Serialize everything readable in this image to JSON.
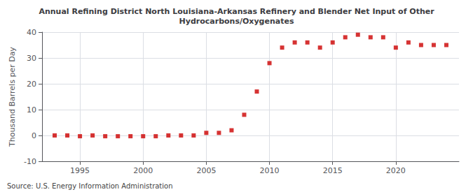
{
  "chart_data": {
    "type": "scatter",
    "title": "Annual Refining District North Louisiana-Arkansas Refinery and Blender Net Input of Other\nHydrocarbons/Oxygenates",
    "ylabel": "Thousand Barrels per Day",
    "source": "Source: U.S. Energy Information Administration",
    "x": [
      1993,
      1994,
      1995,
      1996,
      1997,
      1998,
      1999,
      2000,
      2001,
      2002,
      2003,
      2004,
      2005,
      2006,
      2007,
      2008,
      2009,
      2010,
      2011,
      2012,
      2013,
      2014,
      2015,
      2016,
      2017,
      2018,
      2019,
      2020,
      2021,
      2022,
      2023,
      2024
    ],
    "values": [
      0,
      0,
      -0.3,
      0,
      -0.3,
      -0.3,
      -0.3,
      -0.3,
      -0.3,
      0,
      0,
      0,
      1,
      1,
      2,
      8,
      17,
      28,
      34,
      36,
      36,
      34,
      36,
      38,
      39,
      38,
      38,
      34,
      36,
      35,
      35,
      35
    ],
    "color": "#cc0000",
    "marker": "square",
    "xlim": [
      1992,
      2025
    ],
    "xticks": [
      1995,
      2000,
      2005,
      2010,
      2015,
      2020
    ],
    "ylim": [
      -10,
      40
    ],
    "yticks": [
      -10,
      0,
      10,
      20,
      30,
      40
    ],
    "grid": true
  }
}
